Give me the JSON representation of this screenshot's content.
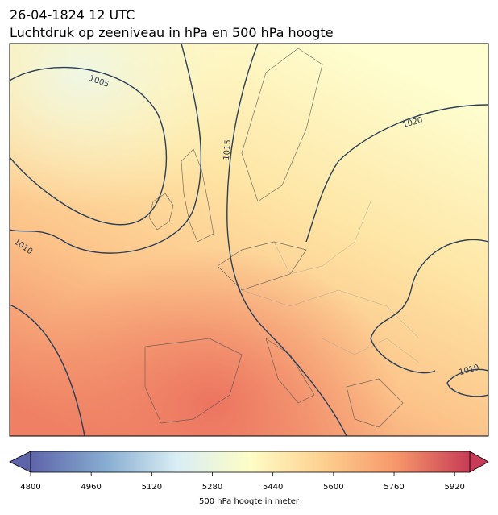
{
  "header": {
    "title_line1": "26-04-1824 12 UTC",
    "title_line2": "Luchtdruk op zeeniveau in hPa en 500 hPa hoogte"
  },
  "map": {
    "contour_labels": [
      1005,
      1010,
      1015,
      1020,
      1010
    ]
  },
  "colorbar": {
    "label": "500 hPa hoogte in meter",
    "range": [
      4800,
      5960
    ],
    "ticks": [
      4800,
      4960,
      5120,
      5280,
      5440,
      5600,
      5760,
      5920
    ],
    "colormap": [
      "#5e64aa",
      "#86abd0",
      "#d9eef5",
      "#fefdc6",
      "#fdd08f",
      "#f7966a",
      "#c63b56"
    ]
  }
}
